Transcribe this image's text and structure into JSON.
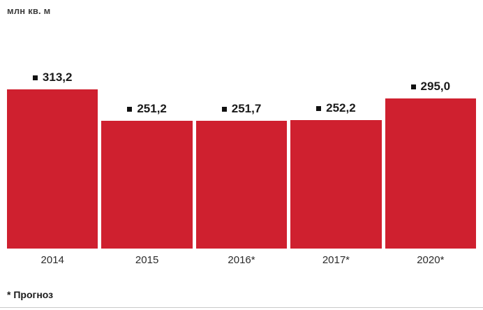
{
  "unit_label": "млн кв. м",
  "footnote": "* Прогноз",
  "colors": {
    "bar": "#cf202f",
    "value_text": "#1a1a1a",
    "axis_text": "#2b2b2b",
    "marker": "#111111",
    "divider": "#c9c9c9"
  },
  "chart_data": {
    "type": "bar",
    "title": "",
    "ylabel": "млн кв. м",
    "xlabel": "",
    "categories": [
      "2014",
      "2015",
      "2016*",
      "2017*",
      "2020*"
    ],
    "values": [
      313.2,
      251.2,
      251.7,
      252.2,
      295.0
    ],
    "value_labels": [
      "313,2",
      "251,2",
      "251,7",
      "252,2",
      "295,0"
    ],
    "ylim": [
      0,
      330
    ],
    "grid": false,
    "legend": "none",
    "annotations": [
      "* Прогноз"
    ]
  }
}
